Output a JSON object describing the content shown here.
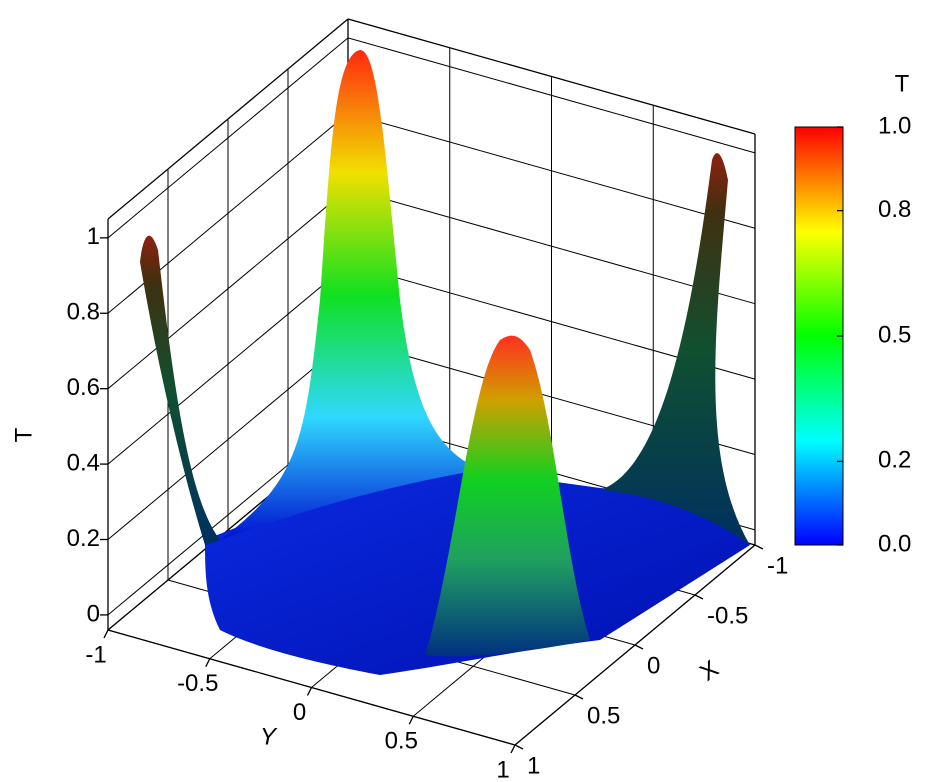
{
  "chart_data": {
    "type": "surface3d",
    "xlabel": "X",
    "ylabel": "Y",
    "zlabel": "T",
    "xlim": [
      -1,
      1
    ],
    "ylim": [
      -1,
      1
    ],
    "zlim": [
      -0.04,
      1.05
    ],
    "xticks": [
      -1,
      -0.5,
      0,
      0.5,
      1
    ],
    "yticks": [
      -1,
      -0.5,
      0,
      0.5,
      1
    ],
    "zticks": [
      0,
      0.2,
      0.4,
      0.6,
      0.8,
      1
    ],
    "grid": true,
    "colorbar": {
      "title": "T",
      "lim": [
        0,
        1
      ],
      "ticks": [
        {
          "value": 0,
          "label": "0.0"
        },
        0.2,
        0.5,
        0.8,
        {
          "value": 1,
          "label": "1.0"
        }
      ],
      "colors": [
        "#0000ff",
        "#00ffff",
        "#00ff00",
        "#ffff00",
        "#ff0000"
      ]
    }
  }
}
